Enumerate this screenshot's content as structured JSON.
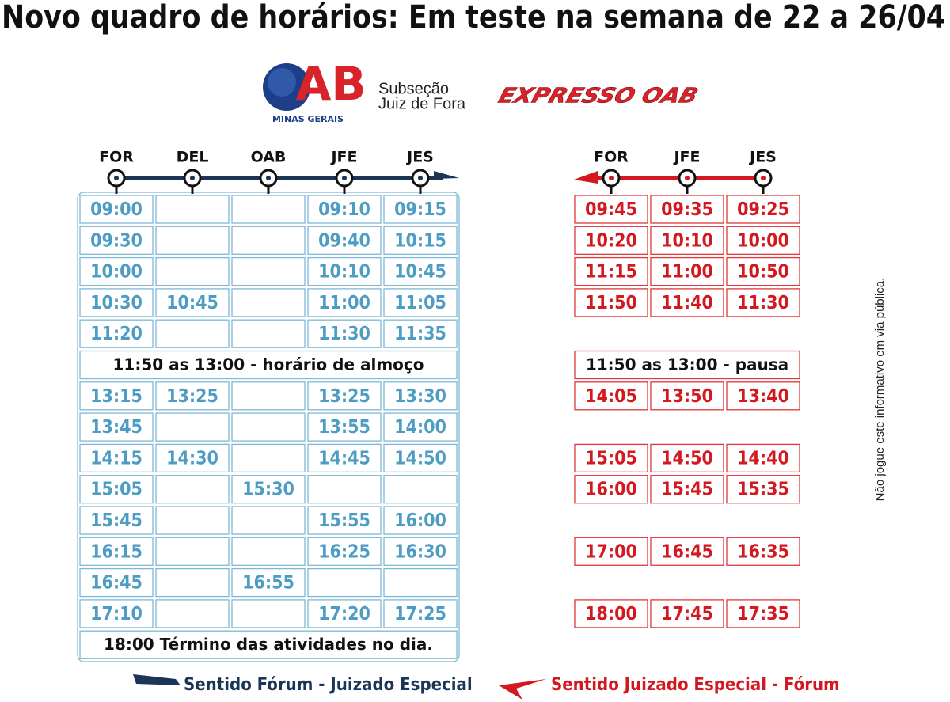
{
  "title": "Novo quadro de horários: Em teste na semana de 22 a 26/04",
  "logo": {
    "letters": "AB",
    "region": "MINAS GERAIS",
    "subsection": "Subseção",
    "city": "Juiz de Fora",
    "brand": "EXPRESSO OAB"
  },
  "left": {
    "stops": [
      "FOR",
      "DEL",
      "OAB",
      "JFE",
      "JES"
    ],
    "rows_before": [
      [
        "09:00",
        null,
        null,
        "09:10",
        "09:15"
      ],
      [
        "09:30",
        null,
        null,
        "09:40",
        "10:15"
      ],
      [
        "10:00",
        null,
        null,
        "10:10",
        "10:45"
      ],
      [
        "10:30",
        "10:45",
        null,
        "11:00",
        "11:05"
      ],
      [
        "11:20",
        null,
        null,
        "11:30",
        "11:35"
      ]
    ],
    "break": "11:50 as 13:00 - horário de almoço",
    "rows_after": [
      [
        "13:15",
        "13:25",
        null,
        "13:25",
        "13:30"
      ],
      [
        "13:45",
        null,
        null,
        "13:55",
        "14:00"
      ],
      [
        "14:15",
        "14:30",
        null,
        "14:45",
        "14:50"
      ],
      [
        "15:05",
        null,
        "15:30",
        null,
        null
      ],
      [
        "15:45",
        null,
        null,
        "15:55",
        "16:00"
      ],
      [
        "16:15",
        null,
        null,
        "16:25",
        "16:30"
      ],
      [
        "16:45",
        null,
        "16:55",
        null,
        null
      ],
      [
        "17:10",
        null,
        null,
        "17:20",
        "17:25"
      ]
    ],
    "end": "18:00 Término das atividades no dia.",
    "direction": "Sentido Fórum - Juizado Especial"
  },
  "right": {
    "stops": [
      "FOR",
      "JFE",
      "JES"
    ],
    "rows_before": [
      [
        "09:45",
        "09:35",
        "09:25"
      ],
      [
        "10:20",
        "10:10",
        "10:00"
      ],
      [
        "11:15",
        "11:00",
        "10:50"
      ],
      [
        "11:50",
        "11:40",
        "11:30"
      ],
      null
    ],
    "break": "11:50 as 13:00 -  pausa",
    "rows_after": [
      [
        "14:05",
        "13:50",
        "13:40"
      ],
      null,
      [
        "15:05",
        "14:50",
        "14:40"
      ],
      [
        "16:00",
        "15:45",
        "15:35"
      ],
      null,
      [
        "17:00",
        "16:45",
        "16:35"
      ],
      null,
      [
        "18:00",
        "17:45",
        "17:35"
      ]
    ],
    "direction": "Sentido Juizado Especial - Fórum"
  },
  "side_note": "Não jogue este informativo em via pública."
}
